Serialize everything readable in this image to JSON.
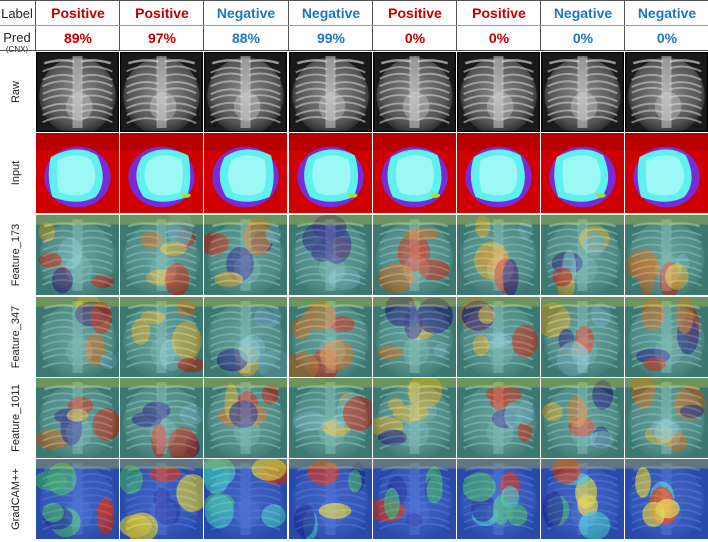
{
  "header": {
    "label_title": "Label",
    "pred_title": "Pred",
    "pred_subtitle": "(CNX)"
  },
  "colors": {
    "positive": "#c00000",
    "negative": "#1f77c0"
  },
  "columns": [
    {
      "label": "Positive",
      "class": "positive",
      "pred": "89%"
    },
    {
      "label": "Positive",
      "class": "positive",
      "pred": "97%"
    },
    {
      "label": "Negative",
      "class": "negative",
      "pred": "88%"
    },
    {
      "label": "Negative",
      "class": "negative",
      "pred": "99%"
    },
    {
      "label": "Positive",
      "class": "positive",
      "pred": "0%"
    },
    {
      "label": "Positive",
      "class": "positive",
      "pred": "0%"
    },
    {
      "label": "Negative",
      "class": "negative",
      "pred": "0%"
    },
    {
      "label": "Negative",
      "class": "negative",
      "pred": "0%"
    }
  ],
  "rows": [
    {
      "name": "Raw",
      "kind": "raw"
    },
    {
      "name": "Input",
      "kind": "input"
    },
    {
      "name": "Feature_173",
      "kind": "feature"
    },
    {
      "name": "Feature_347",
      "kind": "feature"
    },
    {
      "name": "Feature_1011",
      "kind": "feature"
    },
    {
      "name": "GradCAM++",
      "kind": "gradcam"
    }
  ]
}
